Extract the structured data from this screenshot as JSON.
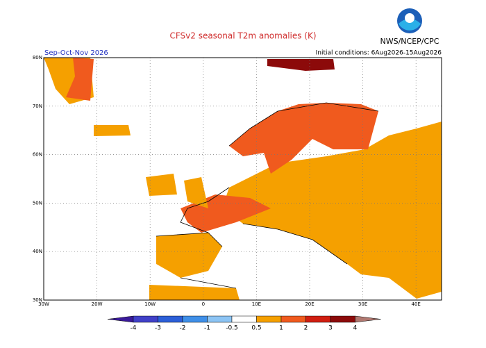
{
  "header": {
    "title": "CFSv2 seasonal T2m anomalies (K)",
    "agency": "NWS/NCEP/CPC",
    "season": "Sep-Oct-Nov 2026",
    "initial_conditions": "Initial conditions: 6Aug2026-15Aug2026"
  },
  "map": {
    "lat_labels": [
      "80N",
      "70N",
      "60N",
      "50N",
      "40N",
      "30N"
    ],
    "lon_labels": [
      "30W",
      "20W",
      "10W",
      "0",
      "10E",
      "20E",
      "30E",
      "40E"
    ]
  },
  "colorbar": {
    "ticks": [
      -4,
      -3,
      -2,
      -1,
      -0.5,
      0.5,
      1,
      2,
      3,
      4
    ],
    "colors": [
      "#3a1a9a",
      "#4040c8",
      "#2c5fd8",
      "#3f8fe8",
      "#8cc4f4",
      "#ffffff",
      "#f5a000",
      "#f05a1e",
      "#d01e10",
      "#8c0a0a",
      "#b07870"
    ]
  }
}
